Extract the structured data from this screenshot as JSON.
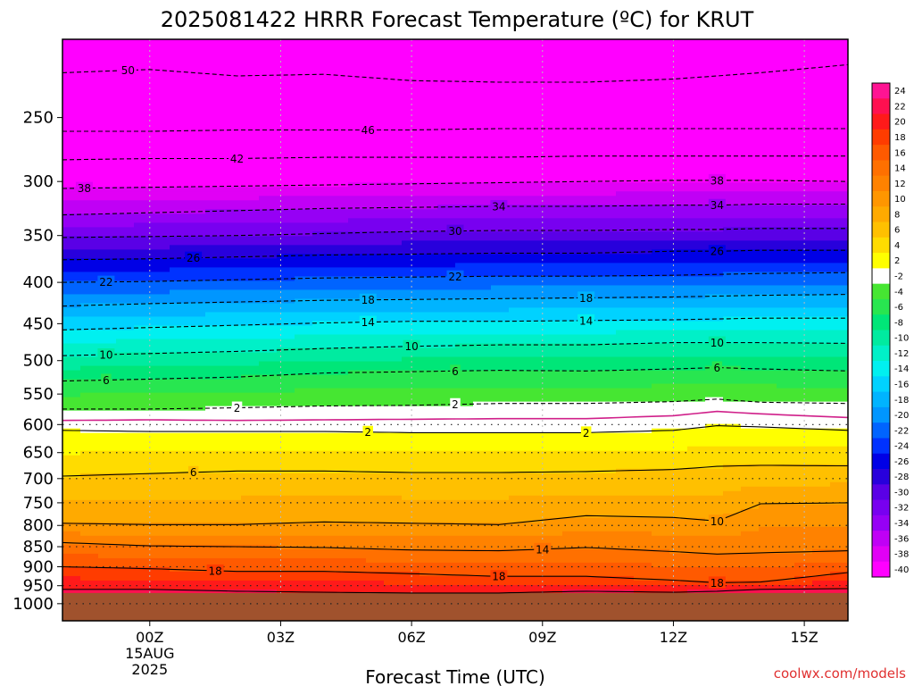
{
  "chart_data": {
    "type": "heatmap",
    "title": "2025081422 HRRR Forecast Temperature (ºC) for KRUT",
    "xlabel": "Forecast Time (UTC)",
    "ylabel": "",
    "credit": "coolwx.com/models",
    "x_ticks": [
      {
        "hour": 0,
        "label": "00Z",
        "sub": [
          "15AUG",
          "2025"
        ]
      },
      {
        "hour": 3,
        "label": "03Z"
      },
      {
        "hour": 6,
        "label": "06Z"
      },
      {
        "hour": 9,
        "label": "09Z"
      },
      {
        "hour": 12,
        "label": "12Z"
      },
      {
        "hour": 15,
        "label": "15Z"
      }
    ],
    "xlim": [
      -2,
      16
    ],
    "y_scale": "log-pressure",
    "ylim": [
      1050,
      200
    ],
    "y_ticks": [
      250,
      300,
      350,
      400,
      450,
      500,
      550,
      600,
      650,
      700,
      750,
      800,
      850,
      900,
      950,
      1000
    ],
    "dotted_levels": [
      600,
      650,
      700,
      750,
      800,
      850,
      900,
      950,
      1000
    ],
    "surface_pressure": 970,
    "surface_color": "#a0522d",
    "colorbar": {
      "levels": [
        24,
        22,
        20,
        18,
        16,
        14,
        12,
        10,
        8,
        6,
        4,
        2,
        -2,
        -4,
        -6,
        -8,
        -10,
        -12,
        -14,
        -16,
        -18,
        -20,
        -22,
        -24,
        -26,
        -28,
        -30,
        -32,
        -34,
        -36,
        -38,
        -40
      ],
      "colors": [
        "#ff1493",
        "#ff1050",
        "#ff1a1a",
        "#ff3c00",
        "#ff5a00",
        "#ff7000",
        "#ff8200",
        "#ff9600",
        "#ffaa00",
        "#ffc000",
        "#ffdc00",
        "#ffff00",
        "#ffffff",
        "#46e632",
        "#28e650",
        "#00e678",
        "#00eba0",
        "#00f0c8",
        "#00f0f0",
        "#00d2ff",
        "#00b4ff",
        "#0096ff",
        "#0064ff",
        "#0032ff",
        "#0000e6",
        "#2800dc",
        "#5a00e6",
        "#7800f0",
        "#9600f5",
        "#c000f5",
        "#e100f5",
        "#ff00ff"
      ]
    },
    "contour_times": [
      -2,
      0,
      2,
      4,
      6,
      8,
      10,
      12,
      13,
      14,
      16
    ],
    "contours": [
      {
        "value": 22,
        "labels": [],
        "p": [
          960,
          960,
          965,
          968,
          970,
          970,
          965,
          968,
          965,
          960,
          958
        ]
      },
      {
        "value": 18,
        "labels": [
          {
            "hour": 1.5,
            "text": "18"
          },
          {
            "hour": 8,
            "text": "18"
          },
          {
            "hour": 13,
            "text": "18"
          }
        ],
        "p": [
          900,
          905,
          912,
          912,
          918,
          925,
          925,
          935,
          942,
          940,
          915
        ]
      },
      {
        "value": 14,
        "labels": [
          {
            "hour": 9,
            "text": "14"
          }
        ],
        "p": [
          840,
          848,
          850,
          852,
          858,
          860,
          852,
          862,
          868,
          865,
          860
        ]
      },
      {
        "value": 10,
        "labels": [
          {
            "hour": 13,
            "text": "10"
          }
        ],
        "p": [
          795,
          798,
          798,
          792,
          795,
          798,
          778,
          782,
          790,
          752,
          750
        ]
      },
      {
        "value": 6,
        "labels": [
          {
            "hour": 1,
            "text": "6"
          }
        ],
        "p": [
          695,
          690,
          685,
          685,
          688,
          688,
          686,
          682,
          676,
          674,
          675
        ]
      },
      {
        "value": 2,
        "labels": [
          {
            "hour": 5,
            "text": "2"
          },
          {
            "hour": 10,
            "text": "2"
          }
        ],
        "p": [
          610,
          612,
          612,
          612,
          614,
          614,
          614,
          610,
          602,
          604,
          610
        ]
      },
      {
        "value": -2,
        "labels": [
          {
            "hour": 2,
            "text": "2"
          },
          {
            "hour": 7,
            "text": "2"
          }
        ],
        "p": [
          574,
          574,
          572,
          569,
          568,
          565,
          565,
          562,
          558,
          563,
          565
        ]
      },
      {
        "value": -6,
        "labels": [
          {
            "hour": -1,
            "text": "6"
          },
          {
            "hour": 7,
            "text": "6"
          },
          {
            "hour": 13,
            "text": "6"
          }
        ],
        "p": [
          530,
          527,
          524,
          518,
          516,
          514,
          515,
          512,
          510,
          512,
          515
        ]
      },
      {
        "value": -10,
        "labels": [
          {
            "hour": -1,
            "text": "10"
          },
          {
            "hour": 6,
            "text": "10"
          },
          {
            "hour": 13,
            "text": "10"
          }
        ],
        "p": [
          493,
          490,
          487,
          483,
          480,
          478,
          478,
          475,
          475,
          475,
          476
        ]
      },
      {
        "value": -14,
        "labels": [
          {
            "hour": 5,
            "text": "14"
          },
          {
            "hour": 10,
            "text": "14"
          }
        ],
        "p": [
          458,
          455,
          452,
          449,
          447,
          447,
          446,
          445,
          444,
          443,
          443
        ]
      },
      {
        "value": -18,
        "labels": [
          {
            "hour": 5,
            "text": "18"
          },
          {
            "hour": 10,
            "text": "18"
          }
        ],
        "p": [
          428,
          425,
          423,
          421,
          420,
          419,
          418,
          417,
          416,
          415,
          414
        ]
      },
      {
        "value": -22,
        "labels": [
          {
            "hour": -1,
            "text": "22"
          },
          {
            "hour": 7,
            "text": "22"
          }
        ],
        "p": [
          400,
          399,
          397,
          395,
          394,
          393,
          393,
          392,
          391,
          390,
          389
        ]
      },
      {
        "value": -26,
        "labels": [
          {
            "hour": 1,
            "text": "26"
          },
          {
            "hour": 13,
            "text": "26"
          }
        ],
        "p": [
          375,
          374,
          372,
          370,
          369,
          368,
          368,
          366,
          366,
          365,
          365
        ]
      },
      {
        "value": -30,
        "labels": [
          {
            "hour": 7,
            "text": "30"
          }
        ],
        "p": [
          352,
          351,
          350,
          348,
          346,
          345,
          345,
          344,
          344,
          343,
          343
        ]
      },
      {
        "value": -34,
        "labels": [
          {
            "hour": 8,
            "text": "34"
          },
          {
            "hour": 13,
            "text": "34"
          }
        ],
        "p": [
          330,
          328,
          326,
          324,
          323,
          322,
          322,
          321,
          321,
          320,
          320
        ]
      },
      {
        "value": -38,
        "labels": [
          {
            "hour": -1.5,
            "text": "38"
          },
          {
            "hour": 13,
            "text": "38"
          }
        ],
        "p": [
          306,
          305,
          304,
          303,
          302,
          301,
          300,
          299,
          299,
          299,
          300
        ]
      },
      {
        "value": -42,
        "labels": [
          {
            "hour": 2,
            "text": "42"
          }
        ],
        "p": [
          282,
          281,
          281,
          280,
          280,
          280,
          279,
          279,
          279,
          279,
          279
        ]
      },
      {
        "value": -46,
        "labels": [
          {
            "hour": 5,
            "text": "46"
          }
        ],
        "p": [
          260,
          260,
          259,
          259,
          259,
          258,
          258,
          258,
          258,
          258,
          258
        ]
      },
      {
        "value": -50,
        "labels": [
          {
            "hour": -0.5,
            "text": "50"
          }
        ],
        "p": [
          220,
          218,
          222,
          221,
          225,
          226,
          226,
          224,
          222,
          220,
          215
        ]
      }
    ],
    "zero_line": {
      "value": 0,
      "color": "#d0208a",
      "p": [
        593,
        592,
        593,
        592,
        591,
        590,
        590,
        585,
        578,
        582,
        588
      ]
    }
  }
}
